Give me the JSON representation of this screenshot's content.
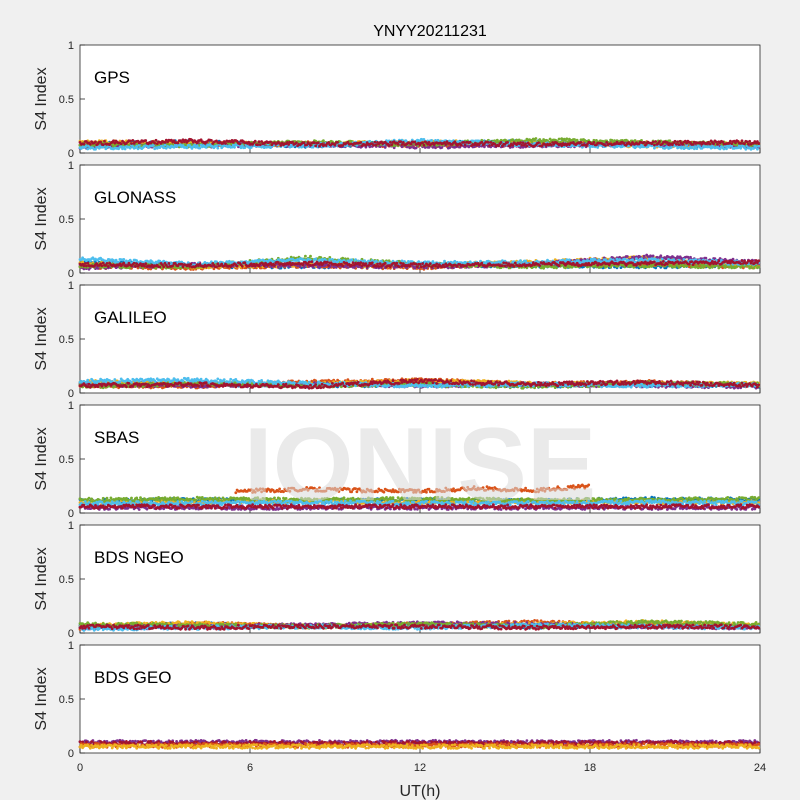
{
  "chart_data": {
    "type": "scatter",
    "title": "YNYY20211231",
    "xlabel": "UT(h)",
    "ylabel": "S4 Index",
    "xlim": [
      0,
      24
    ],
    "ylim": [
      0,
      1
    ],
    "xticks": [
      0,
      6,
      12,
      18,
      24
    ],
    "yticks": [
      0,
      0.5,
      1
    ],
    "ytick_labels": [
      "0",
      "0.5",
      "1"
    ],
    "grid": false,
    "watermark": "IONISE",
    "series_colors": [
      "#0072BD",
      "#D95319",
      "#EDB120",
      "#7E2F8E",
      "#77AC30",
      "#4DBEEE",
      "#A2142F"
    ],
    "panels": [
      {
        "label": "GPS",
        "series": [
          {
            "color": "#0072BD",
            "x": [
              0,
              4,
              8,
              12,
              16,
              20,
              24
            ],
            "y": [
              0.08,
              0.1,
              0.07,
              0.09,
              0.1,
              0.08,
              0.07
            ]
          },
          {
            "color": "#D95319",
            "x": [
              0,
              4,
              8,
              12,
              16,
              20,
              24
            ],
            "y": [
              0.07,
              0.08,
              0.09,
              0.07,
              0.08,
              0.09,
              0.08
            ]
          },
          {
            "color": "#EDB120",
            "x": [
              0,
              4,
              8,
              12,
              16,
              20,
              24
            ],
            "y": [
              0.1,
              0.09,
              0.08,
              0.1,
              0.09,
              0.07,
              0.09
            ]
          },
          {
            "color": "#7E2F8E",
            "x": [
              0,
              4,
              8,
              12,
              16,
              20,
              24
            ],
            "y": [
              0.06,
              0.07,
              0.08,
              0.06,
              0.07,
              0.08,
              0.06
            ]
          },
          {
            "color": "#77AC30",
            "x": [
              0,
              4,
              8,
              12,
              16,
              20,
              24
            ],
            "y": [
              0.08,
              0.07,
              0.1,
              0.08,
              0.12,
              0.1,
              0.08
            ]
          },
          {
            "color": "#4DBEEE",
            "x": [
              0,
              4,
              8,
              12,
              16,
              20,
              24
            ],
            "y": [
              0.05,
              0.06,
              0.07,
              0.11,
              0.08,
              0.06,
              0.05
            ]
          },
          {
            "color": "#A2142F",
            "x": [
              0,
              4,
              8,
              12,
              16,
              20,
              24
            ],
            "y": [
              0.09,
              0.11,
              0.08,
              0.09,
              0.08,
              0.09,
              0.1
            ]
          }
        ]
      },
      {
        "label": "GLONASS",
        "series": [
          {
            "color": "#0072BD",
            "x": [
              0,
              4,
              8,
              12,
              16,
              20,
              24
            ],
            "y": [
              0.1,
              0.07,
              0.06,
              0.08,
              0.07,
              0.06,
              0.08
            ]
          },
          {
            "color": "#D95319",
            "x": [
              0,
              4,
              8,
              12,
              16,
              20,
              24
            ],
            "y": [
              0.06,
              0.05,
              0.07,
              0.05,
              0.09,
              0.08,
              0.06
            ]
          },
          {
            "color": "#EDB120",
            "x": [
              0,
              4,
              8,
              12,
              16,
              20,
              24
            ],
            "y": [
              0.09,
              0.06,
              0.08,
              0.07,
              0.1,
              0.14,
              0.07
            ]
          },
          {
            "color": "#7E2F8E",
            "x": [
              0,
              4,
              8,
              12,
              16,
              20,
              24
            ],
            "y": [
              0.05,
              0.08,
              0.07,
              0.06,
              0.08,
              0.15,
              0.1
            ]
          },
          {
            "color": "#77AC30",
            "x": [
              0,
              4,
              8,
              12,
              16,
              20,
              24
            ],
            "y": [
              0.07,
              0.06,
              0.14,
              0.08,
              0.06,
              0.07,
              0.06
            ]
          },
          {
            "color": "#4DBEEE",
            "x": [
              0,
              4,
              8,
              12,
              16,
              20,
              24
            ],
            "y": [
              0.13,
              0.08,
              0.12,
              0.09,
              0.1,
              0.12,
              0.09
            ]
          },
          {
            "color": "#A2142F",
            "x": [
              0,
              4,
              8,
              12,
              16,
              20,
              24
            ],
            "y": [
              0.08,
              0.07,
              0.09,
              0.07,
              0.08,
              0.09,
              0.1
            ]
          }
        ]
      },
      {
        "label": "GALILEO",
        "series": [
          {
            "color": "#0072BD",
            "x": [
              0,
              4,
              8,
              12,
              16,
              20,
              24
            ],
            "y": [
              0.09,
              0.08,
              0.07,
              0.08,
              0.07,
              0.08,
              0.07
            ]
          },
          {
            "color": "#D95319",
            "x": [
              0,
              4,
              8,
              12,
              16,
              20,
              24
            ],
            "y": [
              0.07,
              0.06,
              0.1,
              0.12,
              0.08,
              0.1,
              0.07
            ]
          },
          {
            "color": "#EDB120",
            "x": [
              0,
              4,
              8,
              12,
              16,
              20,
              24
            ],
            "y": [
              0.1,
              0.09,
              0.08,
              0.11,
              0.09,
              0.08,
              0.09
            ]
          },
          {
            "color": "#7E2F8E",
            "x": [
              0,
              4,
              8,
              12,
              16,
              20,
              24
            ],
            "y": [
              0.08,
              0.07,
              0.08,
              0.07,
              0.08,
              0.07,
              0.06
            ]
          },
          {
            "color": "#77AC30",
            "x": [
              0,
              4,
              8,
              12,
              16,
              20,
              24
            ],
            "y": [
              0.06,
              0.09,
              0.07,
              0.08,
              0.06,
              0.09,
              0.08
            ]
          },
          {
            "color": "#4DBEEE",
            "x": [
              0,
              4,
              8,
              12,
              16,
              20,
              24
            ],
            "y": [
              0.11,
              0.12,
              0.09,
              0.07,
              0.08,
              0.07,
              0.08
            ]
          },
          {
            "color": "#A2142F",
            "x": [
              0,
              4,
              8,
              12,
              16,
              20,
              24
            ],
            "y": [
              0.07,
              0.08,
              0.06,
              0.11,
              0.08,
              0.1,
              0.07
            ]
          }
        ]
      },
      {
        "label": "SBAS",
        "series": [
          {
            "color": "#0072BD",
            "x": [
              0,
              4,
              8,
              12,
              16,
              20,
              24
            ],
            "y": [
              0.11,
              0.12,
              0.11,
              0.12,
              0.11,
              0.13,
              0.12
            ]
          },
          {
            "color": "#D95319",
            "x": [
              5.5,
              8,
              10,
              12,
              14,
              16,
              18
            ],
            "y": [
              0.2,
              0.22,
              0.21,
              0.2,
              0.23,
              0.21,
              0.25
            ]
          },
          {
            "color": "#EDB120",
            "x": [
              0,
              4,
              8,
              12,
              16,
              20,
              24
            ],
            "y": [
              0.1,
              0.1,
              0.11,
              0.1,
              0.11,
              0.1,
              0.1
            ]
          },
          {
            "color": "#7E2F8E",
            "x": [
              0,
              4,
              8,
              12,
              16,
              20,
              24
            ],
            "y": [
              0.05,
              0.05,
              0.05,
              0.05,
              0.05,
              0.05,
              0.05
            ]
          },
          {
            "color": "#77AC30",
            "x": [
              0,
              4,
              8,
              12,
              16,
              20,
              24
            ],
            "y": [
              0.12,
              0.13,
              0.12,
              0.13,
              0.12,
              0.12,
              0.13
            ]
          },
          {
            "color": "#4DBEEE",
            "x": [
              0,
              4,
              8,
              12,
              16,
              20,
              24
            ],
            "y": [
              0.09,
              0.09,
              0.1,
              0.09,
              0.09,
              0.1,
              0.09
            ]
          },
          {
            "color": "#A2142F",
            "x": [
              0,
              4,
              8,
              12,
              16,
              20,
              24
            ],
            "y": [
              0.06,
              0.06,
              0.06,
              0.06,
              0.06,
              0.06,
              0.06
            ]
          }
        ]
      },
      {
        "label": "BDS NGEO",
        "series": [
          {
            "color": "#0072BD",
            "x": [
              0,
              4,
              8,
              12,
              16,
              20,
              24
            ],
            "y": [
              0.06,
              0.08,
              0.06,
              0.07,
              0.06,
              0.07,
              0.06
            ]
          },
          {
            "color": "#D95319",
            "x": [
              0,
              4,
              8,
              12,
              16,
              20,
              24
            ],
            "y": [
              0.05,
              0.09,
              0.06,
              0.08,
              0.1,
              0.07,
              0.06
            ]
          },
          {
            "color": "#EDB120",
            "x": [
              0,
              4,
              8,
              12,
              16,
              20,
              24
            ],
            "y": [
              0.07,
              0.09,
              0.06,
              0.07,
              0.08,
              0.1,
              0.07
            ]
          },
          {
            "color": "#7E2F8E",
            "x": [
              0,
              4,
              8,
              12,
              16,
              20,
              24
            ],
            "y": [
              0.05,
              0.06,
              0.07,
              0.09,
              0.08,
              0.06,
              0.05
            ]
          },
          {
            "color": "#77AC30",
            "x": [
              0,
              4,
              8,
              12,
              16,
              20,
              24
            ],
            "y": [
              0.08,
              0.07,
              0.06,
              0.08,
              0.06,
              0.1,
              0.08
            ]
          },
          {
            "color": "#4DBEEE",
            "x": [
              0,
              4,
              8,
              12,
              16,
              20,
              24
            ],
            "y": [
              0.04,
              0.05,
              0.06,
              0.05,
              0.07,
              0.06,
              0.05
            ]
          },
          {
            "color": "#A2142F",
            "x": [
              0,
              4,
              8,
              12,
              16,
              20,
              24
            ],
            "y": [
              0.06,
              0.05,
              0.06,
              0.06,
              0.05,
              0.06,
              0.06
            ]
          }
        ]
      },
      {
        "label": "BDS GEO",
        "series": [
          {
            "color": "#7E2F8E",
            "x": [
              0,
              4,
              8,
              12,
              16,
              20,
              24
            ],
            "y": [
              0.1,
              0.1,
              0.1,
              0.1,
              0.1,
              0.1,
              0.1
            ]
          },
          {
            "color": "#A2142F",
            "x": [
              0,
              4,
              8,
              12,
              16,
              20,
              24
            ],
            "y": [
              0.09,
              0.09,
              0.09,
              0.09,
              0.09,
              0.09,
              0.09
            ]
          },
          {
            "color": "#D95319",
            "x": [
              0,
              4,
              8,
              12,
              16,
              20,
              24
            ],
            "y": [
              0.07,
              0.07,
              0.07,
              0.07,
              0.07,
              0.07,
              0.07
            ]
          },
          {
            "color": "#EDB120",
            "x": [
              0,
              4,
              8,
              12,
              16,
              20,
              24
            ],
            "y": [
              0.06,
              0.06,
              0.06,
              0.06,
              0.06,
              0.06,
              0.06
            ]
          }
        ]
      }
    ]
  }
}
